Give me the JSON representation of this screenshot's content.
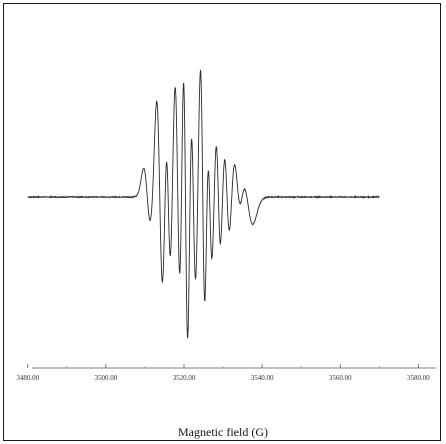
{
  "chart_data": {
    "type": "line",
    "title": "",
    "xlabel": "Magnetic field (G)",
    "ylabel": "",
    "xlim": [
      3477,
      3584
    ],
    "ylim": [
      -1.0,
      1.0
    ],
    "xticks": [
      3480,
      3500,
      3520,
      3540,
      3560,
      3580
    ],
    "xtick_labels": [
      "3480.00",
      "3500.00",
      "3520.00",
      "3540.00",
      "3560.00",
      "3580.00"
    ],
    "grid": false,
    "legend": "none",
    "line_color": "#2a2a2a",
    "series": [
      {
        "center": 3525.5,
        "baseline_range": [
          3480,
          3570
        ],
        "derivative_lines": [
          {
            "position": 3510.6,
            "amplitude": 0.18,
            "width": 0.9
          },
          {
            "position": 3513.8,
            "amplitude": 0.62,
            "width": 0.8
          },
          {
            "position": 3516.0,
            "amplitude": 0.45,
            "width": 0.6
          },
          {
            "position": 3518.4,
            "amplitude": 0.72,
            "width": 0.7
          },
          {
            "position": 3520.4,
            "amplitude": 1.0,
            "width": 0.6
          },
          {
            "position": 3522.4,
            "amplitude": 0.55,
            "width": 0.6
          },
          {
            "position": 3524.8,
            "amplitude": 0.82,
            "width": 0.6
          },
          {
            "position": 3526.6,
            "amplitude": 0.42,
            "width": 0.6
          },
          {
            "position": 3528.8,
            "amplitude": 0.36,
            "width": 0.6
          },
          {
            "position": 3531.0,
            "amplitude": 0.28,
            "width": 0.7
          },
          {
            "position": 3533.6,
            "amplitude": 0.2,
            "width": 0.9
          },
          {
            "position": 3536.2,
            "amplitude": 0.17,
            "width": 1.4
          }
        ]
      }
    ]
  }
}
